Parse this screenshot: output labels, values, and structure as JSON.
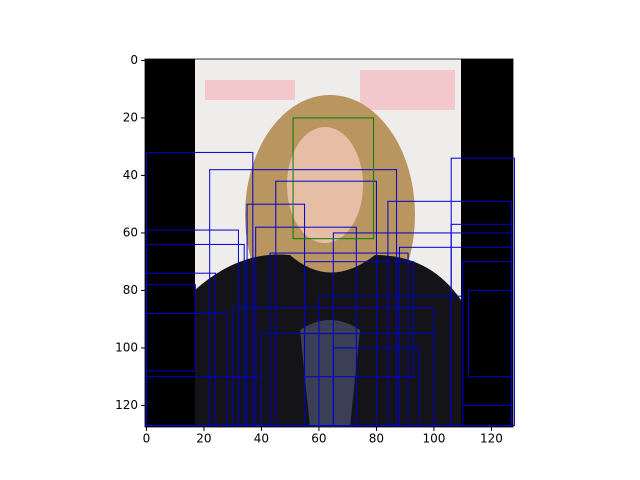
{
  "chart_data": {
    "type": "image",
    "xlim": [
      -0.5,
      127.5
    ],
    "ylim": [
      127.5,
      -0.5
    ],
    "xticks": [
      0,
      20,
      40,
      60,
      80,
      100,
      120
    ],
    "yticks": [
      0,
      20,
      40,
      60,
      80,
      100,
      120
    ],
    "box_color": "#0000cc",
    "boxes": [
      [
        0,
        32,
        37,
        95
      ],
      [
        22,
        38,
        65,
        89
      ],
      [
        106,
        34,
        22,
        93
      ],
      [
        45,
        42,
        35,
        85
      ],
      [
        35,
        50,
        20,
        77
      ],
      [
        84,
        49,
        43,
        78
      ],
      [
        0,
        59,
        32,
        68
      ],
      [
        38,
        58,
        35,
        69
      ],
      [
        106,
        57,
        21,
        70
      ],
      [
        0,
        64,
        34,
        63
      ],
      [
        65,
        60,
        62,
        67
      ],
      [
        43,
        67,
        48,
        60
      ],
      [
        0,
        74,
        24,
        53
      ],
      [
        0,
        78,
        17,
        30
      ],
      [
        88,
        65,
        39,
        62
      ],
      [
        55,
        70,
        38,
        40
      ],
      [
        110,
        70,
        17,
        50
      ],
      [
        30,
        86,
        70,
        41
      ],
      [
        0,
        88,
        28,
        39
      ],
      [
        60,
        82,
        50,
        45
      ],
      [
        40,
        95,
        60,
        32
      ],
      [
        0,
        110,
        40,
        17
      ],
      [
        112,
        80,
        15,
        30
      ],
      [
        65,
        100,
        30,
        27
      ]
    ],
    "highlight_color": "#008000",
    "highlight": [
      51,
      20,
      28,
      42
    ]
  }
}
